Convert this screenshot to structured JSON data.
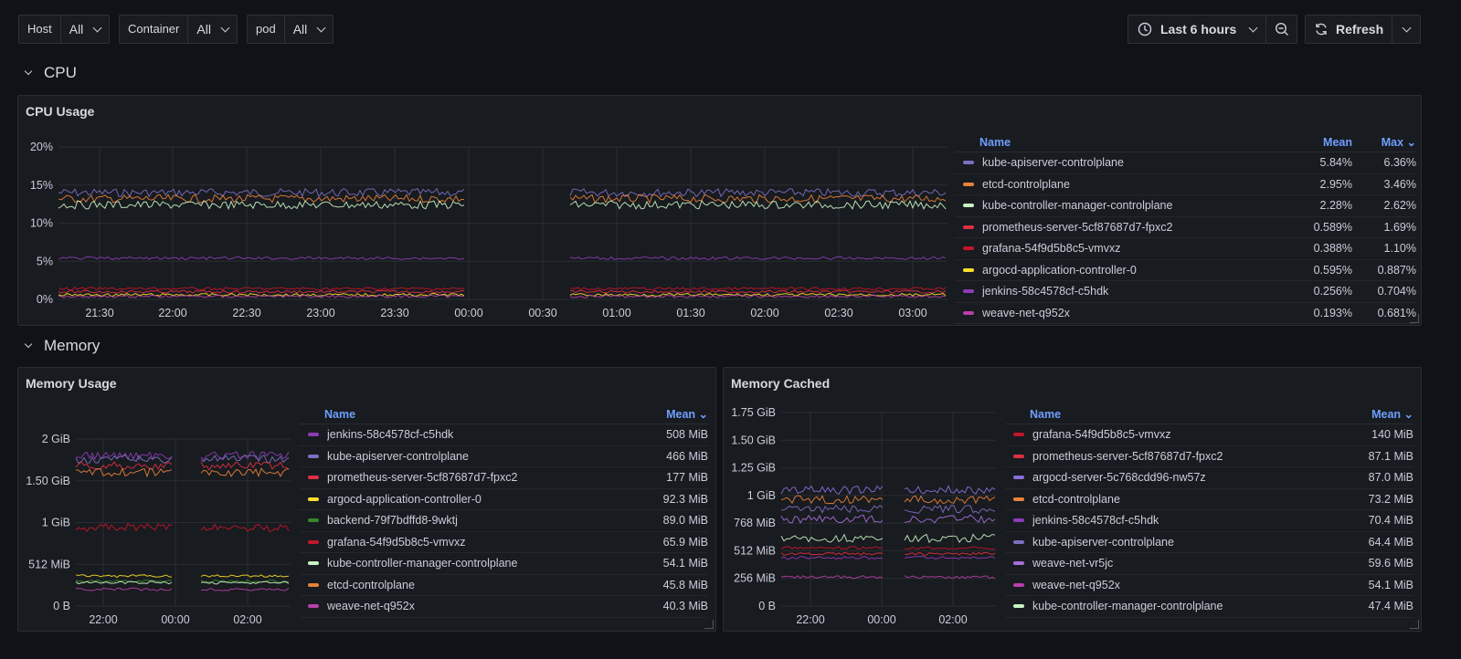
{
  "variables": [
    {
      "label": "Host",
      "value": "All"
    },
    {
      "label": "Container",
      "value": "All"
    },
    {
      "label": "pod",
      "value": "All"
    }
  ],
  "timepicker": {
    "label": "Last 6 hours"
  },
  "refresh": {
    "label": "Refresh"
  },
  "rows": {
    "cpu": "CPU",
    "memory": "Memory"
  },
  "cpu_panel": {
    "title": "CPU Usage",
    "legend_headers": {
      "name": "Name",
      "mean": "Mean",
      "max": "Max"
    },
    "y_ticks": [
      "20%",
      "15%",
      "10%",
      "5%",
      "0%"
    ],
    "x_ticks": [
      "21:30",
      "22:00",
      "22:30",
      "23:00",
      "23:30",
      "00:00",
      "00:30",
      "01:00",
      "01:30",
      "02:00",
      "02:30",
      "03:00"
    ],
    "series": [
      {
        "name": "kube-apiserver-controlplane",
        "mean": "5.84%",
        "max": "6.36%",
        "color": "#7c6fc2"
      },
      {
        "name": "etcd-controlplane",
        "mean": "2.95%",
        "max": "3.46%",
        "color": "#e8823a"
      },
      {
        "name": "kube-controller-manager-controlplane",
        "mean": "2.28%",
        "max": "2.62%",
        "color": "#c8f2c2"
      },
      {
        "name": "prometheus-server-5cf87687d7-fpxc2",
        "mean": "0.589%",
        "max": "1.69%",
        "color": "#e02f44"
      },
      {
        "name": "grafana-54f9d5b8c5-vmvxz",
        "mean": "0.388%",
        "max": "1.10%",
        "color": "#c4162a"
      },
      {
        "name": "argocd-application-controller-0",
        "mean": "0.595%",
        "max": "0.887%",
        "color": "#fade2a"
      },
      {
        "name": "jenkins-58c4578cf-c5hdk",
        "mean": "0.256%",
        "max": "0.704%",
        "color": "#8f3bb8"
      },
      {
        "name": "weave-net-q952x",
        "mean": "0.193%",
        "max": "0.681%",
        "color": "#b83faa"
      }
    ]
  },
  "mem_panel": {
    "title": "Memory Usage",
    "legend_headers": {
      "name": "Name",
      "mean": "Mean"
    },
    "y_ticks": [
      "2 GiB",
      "1.50 GiB",
      "1 GiB",
      "512 MiB",
      "0 B"
    ],
    "x_ticks": [
      "22:00",
      "00:00",
      "02:00"
    ],
    "series": [
      {
        "name": "jenkins-58c4578cf-c5hdk",
        "mean": "508 MiB",
        "color": "#8f3bb8"
      },
      {
        "name": "kube-apiserver-controlplane",
        "mean": "466 MiB",
        "color": "#7c6fc2"
      },
      {
        "name": "prometheus-server-5cf87687d7-fpxc2",
        "mean": "177 MiB",
        "color": "#e02f44"
      },
      {
        "name": "argocd-application-controller-0",
        "mean": "92.3 MiB",
        "color": "#fade2a"
      },
      {
        "name": "backend-79f7bdffd8-9wktj",
        "mean": "89.0 MiB",
        "color": "#37872d"
      },
      {
        "name": "grafana-54f9d5b8c5-vmvxz",
        "mean": "65.9 MiB",
        "color": "#c4162a"
      },
      {
        "name": "kube-controller-manager-controlplane",
        "mean": "54.1 MiB",
        "color": "#c8f2c2"
      },
      {
        "name": "etcd-controlplane",
        "mean": "45.8 MiB",
        "color": "#e8823a"
      },
      {
        "name": "weave-net-q952x",
        "mean": "40.3 MiB",
        "color": "#b83faa"
      }
    ]
  },
  "cache_panel": {
    "title": "Memory Cached",
    "legend_headers": {
      "name": "Name",
      "mean": "Mean"
    },
    "y_ticks": [
      "1.75 GiB",
      "1.50 GiB",
      "1.25 GiB",
      "1 GiB",
      "768 MiB",
      "512 MiB",
      "256 MiB",
      "0 B"
    ],
    "x_ticks": [
      "22:00",
      "00:00",
      "02:00"
    ],
    "series": [
      {
        "name": "grafana-54f9d5b8c5-vmvxz",
        "mean": "140 MiB",
        "color": "#c4162a"
      },
      {
        "name": "prometheus-server-5cf87687d7-fpxc2",
        "mean": "87.1 MiB",
        "color": "#e02f44"
      },
      {
        "name": "argocd-server-5c768cdd96-nw57z",
        "mean": "87.0 MiB",
        "color": "#8a6fd8"
      },
      {
        "name": "etcd-controlplane",
        "mean": "73.2 MiB",
        "color": "#e8823a"
      },
      {
        "name": "jenkins-58c4578cf-c5hdk",
        "mean": "70.4 MiB",
        "color": "#8f3bb8"
      },
      {
        "name": "kube-apiserver-controlplane",
        "mean": "64.4 MiB",
        "color": "#7c6fc2"
      },
      {
        "name": "weave-net-vr5jc",
        "mean": "59.6 MiB",
        "color": "#a66fd8"
      },
      {
        "name": "weave-net-q952x",
        "mean": "54.1 MiB",
        "color": "#b83faa"
      },
      {
        "name": "kube-controller-manager-controlplane",
        "mean": "47.4 MiB",
        "color": "#c8f2c2"
      }
    ]
  }
}
